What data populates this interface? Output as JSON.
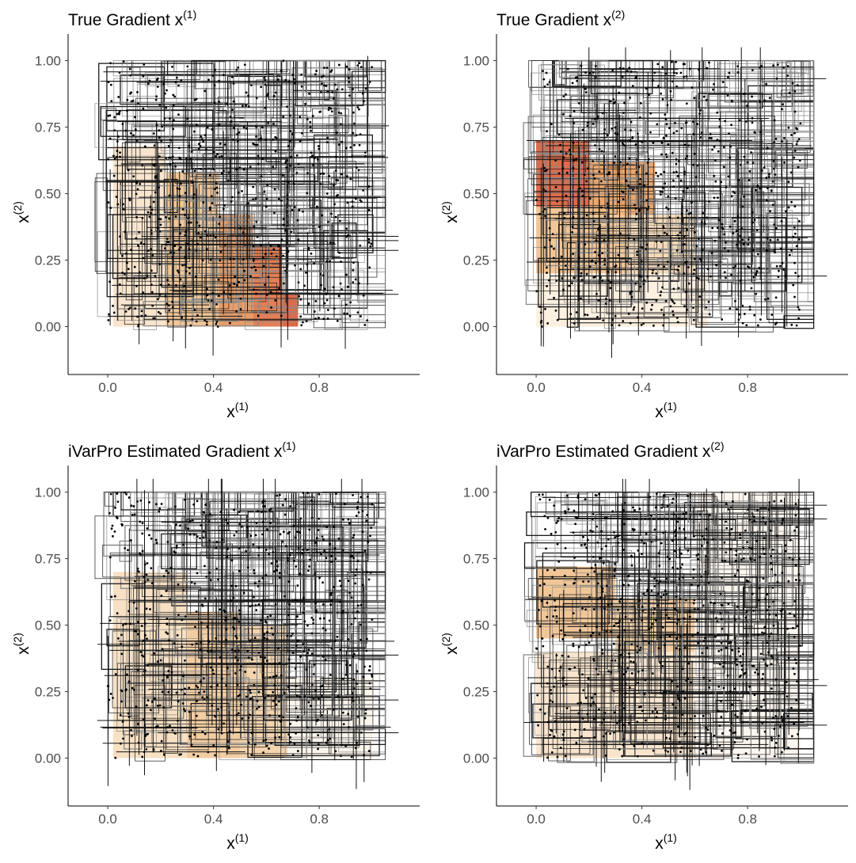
{
  "chart_data": [
    {
      "type": "heatmap",
      "title_main": "True Gradient x",
      "title_sup": "(1)",
      "xlabel_main": "x",
      "xlabel_sup": "(1)",
      "ylabel_main": "x",
      "ylabel_sup": "(2)",
      "x_ticks": [
        "0.0",
        "0.4",
        "0.8"
      ],
      "y_ticks": [
        "0.00",
        "0.25",
        "0.50",
        "0.75",
        "1.00"
      ],
      "xlim": [
        -0.15,
        1.18
      ],
      "ylim": [
        -0.18,
        1.1
      ],
      "grid": false,
      "fill_scale": [
        "#ffffff",
        "#f5d7b0",
        "#e8a05a",
        "#d9502a"
      ],
      "regions": [
        {
          "x0": 0.02,
          "x1": 0.22,
          "y0": 0.0,
          "y1": 0.68,
          "v": 0.25
        },
        {
          "x0": 0.22,
          "x1": 0.42,
          "y0": 0.0,
          "y1": 0.58,
          "v": 0.5
        },
        {
          "x0": 0.42,
          "x1": 0.55,
          "y0": 0.0,
          "y1": 0.42,
          "v": 0.75
        },
        {
          "x0": 0.55,
          "x1": 0.66,
          "y0": 0.0,
          "y1": 0.3,
          "v": 0.9
        },
        {
          "x0": 0.66,
          "x1": 0.72,
          "y0": 0.0,
          "y1": 0.12,
          "v": 1.0
        }
      ]
    },
    {
      "type": "heatmap",
      "title_main": "True Gradient x",
      "title_sup": "(2)",
      "xlabel_main": "x",
      "xlabel_sup": "(1)",
      "ylabel_main": "x",
      "ylabel_sup": "(2)",
      "x_ticks": [
        "0.0",
        "0.4",
        "0.8"
      ],
      "y_ticks": [
        "0.00",
        "0.25",
        "0.50",
        "0.75",
        "1.00"
      ],
      "xlim": [
        -0.15,
        1.18
      ],
      "ylim": [
        -0.18,
        1.1
      ],
      "grid": false,
      "fill_scale": [
        "#ffffff",
        "#f5d7b0",
        "#e8a05a",
        "#d9502a"
      ],
      "regions": [
        {
          "x0": 0.0,
          "x1": 0.2,
          "y0": 0.45,
          "y1": 0.7,
          "v": 1.0
        },
        {
          "x0": 0.2,
          "x1": 0.45,
          "y0": 0.42,
          "y1": 0.62,
          "v": 0.7
        },
        {
          "x0": 0.0,
          "x1": 0.35,
          "y0": 0.2,
          "y1": 0.45,
          "v": 0.5
        },
        {
          "x0": 0.35,
          "x1": 0.6,
          "y0": 0.2,
          "y1": 0.42,
          "v": 0.35
        },
        {
          "x0": 0.0,
          "x1": 0.65,
          "y0": 0.0,
          "y1": 0.2,
          "v": 0.15
        }
      ]
    },
    {
      "type": "heatmap",
      "title_main": "iVarPro Estimated Gradient x",
      "title_sup": "(1)",
      "xlabel_main": "x",
      "xlabel_sup": "(1)",
      "ylabel_main": "x",
      "ylabel_sup": "(2)",
      "x_ticks": [
        "0.0",
        "0.4",
        "0.8"
      ],
      "y_ticks": [
        "0.00",
        "0.25",
        "0.50",
        "0.75",
        "1.00"
      ],
      "xlim": [
        -0.15,
        1.18
      ],
      "ylim": [
        -0.18,
        1.1
      ],
      "grid": false,
      "fill_scale": [
        "#ffffff",
        "#f5d7b0",
        "#e8a05a",
        "#d9502a"
      ],
      "regions": [
        {
          "x0": 0.02,
          "x1": 0.3,
          "y0": 0.0,
          "y1": 0.7,
          "v": 0.3
        },
        {
          "x0": 0.3,
          "x1": 0.5,
          "y0": 0.0,
          "y1": 0.55,
          "v": 0.45
        },
        {
          "x0": 0.5,
          "x1": 0.68,
          "y0": 0.0,
          "y1": 0.5,
          "v": 0.4
        },
        {
          "x0": 0.68,
          "x1": 1.0,
          "y0": 0.0,
          "y1": 0.3,
          "v": 0.1
        }
      ]
    },
    {
      "type": "heatmap",
      "title_main": "iVarPro Estimated Gradient x",
      "title_sup": "(2)",
      "xlabel_main": "x",
      "xlabel_sup": "(1)",
      "ylabel_main": "x",
      "ylabel_sup": "(2)",
      "x_ticks": [
        "0.0",
        "0.4",
        "0.8"
      ],
      "y_ticks": [
        "0.00",
        "0.25",
        "0.50",
        "0.75",
        "1.00"
      ],
      "xlim": [
        -0.15,
        1.18
      ],
      "ylim": [
        -0.18,
        1.1
      ],
      "grid": false,
      "fill_scale": [
        "#ffffff",
        "#f5d7b0",
        "#e8a05a",
        "#d9502a"
      ],
      "regions": [
        {
          "x0": 0.0,
          "x1": 0.3,
          "y0": 0.45,
          "y1": 0.72,
          "v": 0.5
        },
        {
          "x0": 0.3,
          "x1": 0.6,
          "y0": 0.4,
          "y1": 0.6,
          "v": 0.45
        },
        {
          "x0": 0.0,
          "x1": 0.6,
          "y0": 0.0,
          "y1": 0.4,
          "v": 0.25
        },
        {
          "x0": 0.6,
          "x1": 1.0,
          "y0": 0.0,
          "y1": 1.0,
          "v": 0.08
        }
      ]
    }
  ]
}
